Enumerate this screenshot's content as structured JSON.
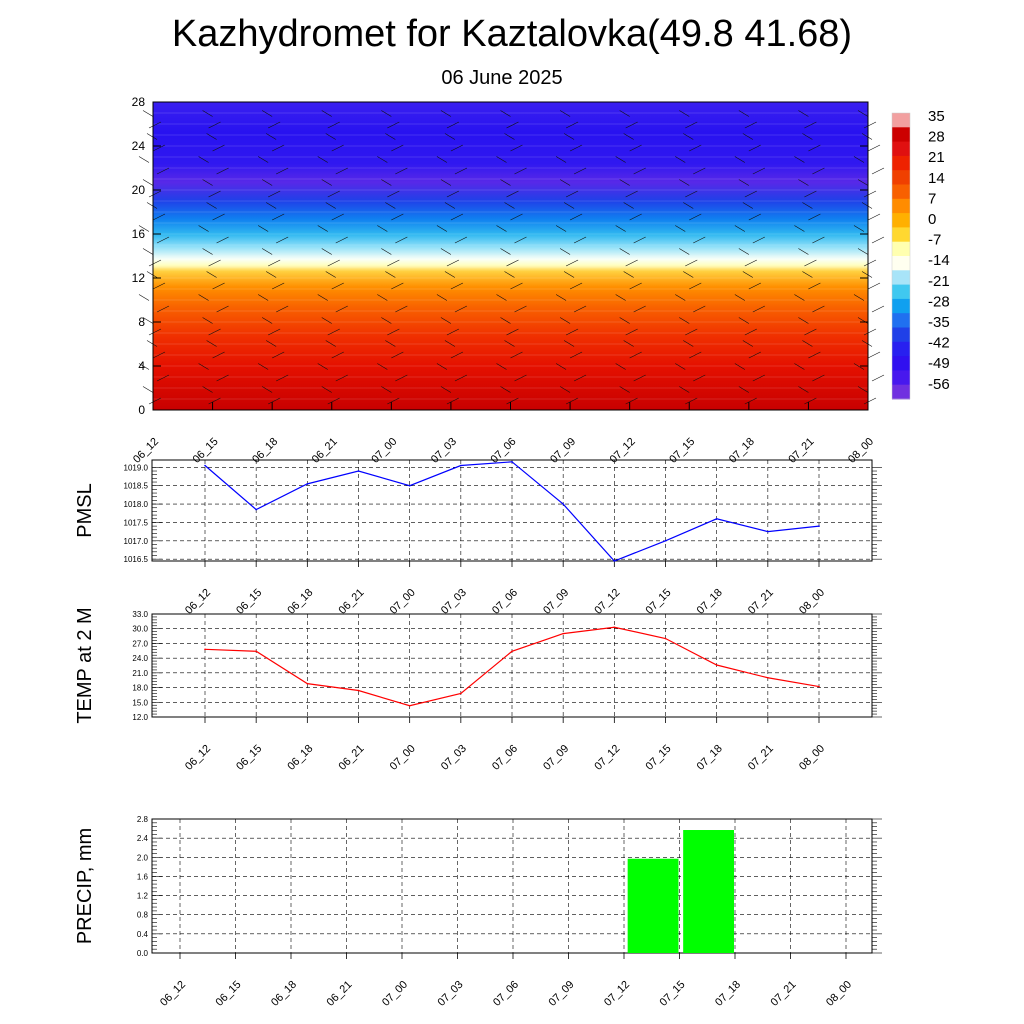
{
  "header": {
    "title": "Kazhydromet for Kaztalovka(49.8 41.68)",
    "subtitle": "06 June 2025"
  },
  "colors": {
    "pmsl_line": "#0000ff",
    "temp_line": "#ff0000",
    "precip_bar": "#00ff00",
    "grid": "#000000"
  },
  "chart_data": [
    {
      "type": "heatmap",
      "title": "",
      "x": [
        "06_12",
        "06_15",
        "06_18",
        "06_21",
        "07_00",
        "07_03",
        "07_06",
        "07_09",
        "07_12",
        "07_15",
        "07_18",
        "07_21",
        "08_00"
      ],
      "ylim": [
        0,
        28
      ],
      "y_ticks": [
        0,
        4,
        8,
        12,
        16,
        20,
        24,
        28
      ],
      "colorbar_labels": [
        "35",
        "28",
        "21",
        "14",
        "7",
        "0",
        "-7",
        "-14",
        "-21",
        "-28",
        "-35",
        "-42",
        "-49",
        "-56"
      ],
      "colorbar_colors": [
        "#f2a0a0",
        "#cc0000",
        "#e01010",
        "#ee2200",
        "#f04000",
        "#f86000",
        "#ff8c00",
        "#ffb000",
        "#ffd830",
        "#ffffb0",
        "#fffff0",
        "#a8e4f8",
        "#40c8f0",
        "#10a0f0",
        "#2070f0",
        "#2040e8",
        "#2820f0",
        "#3010f0",
        "#4818ee",
        "#7030e0"
      ],
      "grid": false,
      "note_wind_barbs": true
    },
    {
      "type": "line",
      "ylabel": "PMSL",
      "x": [
        "06_12",
        "06_15",
        "06_18",
        "06_21",
        "07_00",
        "07_03",
        "07_06",
        "07_09",
        "07_12",
        "07_15",
        "07_18",
        "07_21",
        "08_00"
      ],
      "y_ticks": [
        "1016.5",
        "1017.0",
        "1017.5",
        "1018.0",
        "1018.5",
        "1019.0"
      ],
      "ylim": [
        1016.45,
        1019.2
      ],
      "series": [
        {
          "values": [
            1019.05,
            1017.85,
            1018.55,
            1018.9,
            1018.5,
            1019.05,
            1019.15,
            1018.0,
            1016.45,
            1017.0,
            1017.6,
            1017.25,
            1017.4
          ]
        }
      ],
      "grid": true
    },
    {
      "type": "line",
      "ylabel": "TEMP at 2 M",
      "x": [
        "06_12",
        "06_15",
        "06_18",
        "06_21",
        "07_00",
        "07_03",
        "07_06",
        "07_09",
        "07_12",
        "07_15",
        "07_18",
        "07_21",
        "08_00"
      ],
      "y_ticks": [
        "12.0",
        "15.0",
        "18.0",
        "21.0",
        "24.0",
        "27.0",
        "30.0",
        "33.0"
      ],
      "ylim": [
        12,
        33
      ],
      "series": [
        {
          "values": [
            25.8,
            25.4,
            18.8,
            17.4,
            14.3,
            16.8,
            25.4,
            29.0,
            30.3,
            28.0,
            22.6,
            20.0,
            18.2
          ]
        }
      ],
      "grid": true
    },
    {
      "type": "bar",
      "ylabel": "PRECIP, mm",
      "x": [
        "06_12",
        "06_15",
        "06_18",
        "06_21",
        "07_00",
        "07_03",
        "07_06",
        "07_09",
        "07_12",
        "07_15",
        "07_18",
        "07_21",
        "08_00"
      ],
      "y_ticks": [
        "0.0",
        "0.4",
        "0.8",
        "1.2",
        "1.6",
        "2.0",
        "2.4",
        "2.8"
      ],
      "ylim": [
        0,
        2.8
      ],
      "values": [
        0,
        0,
        0,
        0,
        0,
        0,
        0,
        0,
        0,
        1.97,
        2.57,
        0,
        0
      ],
      "grid": true
    }
  ]
}
